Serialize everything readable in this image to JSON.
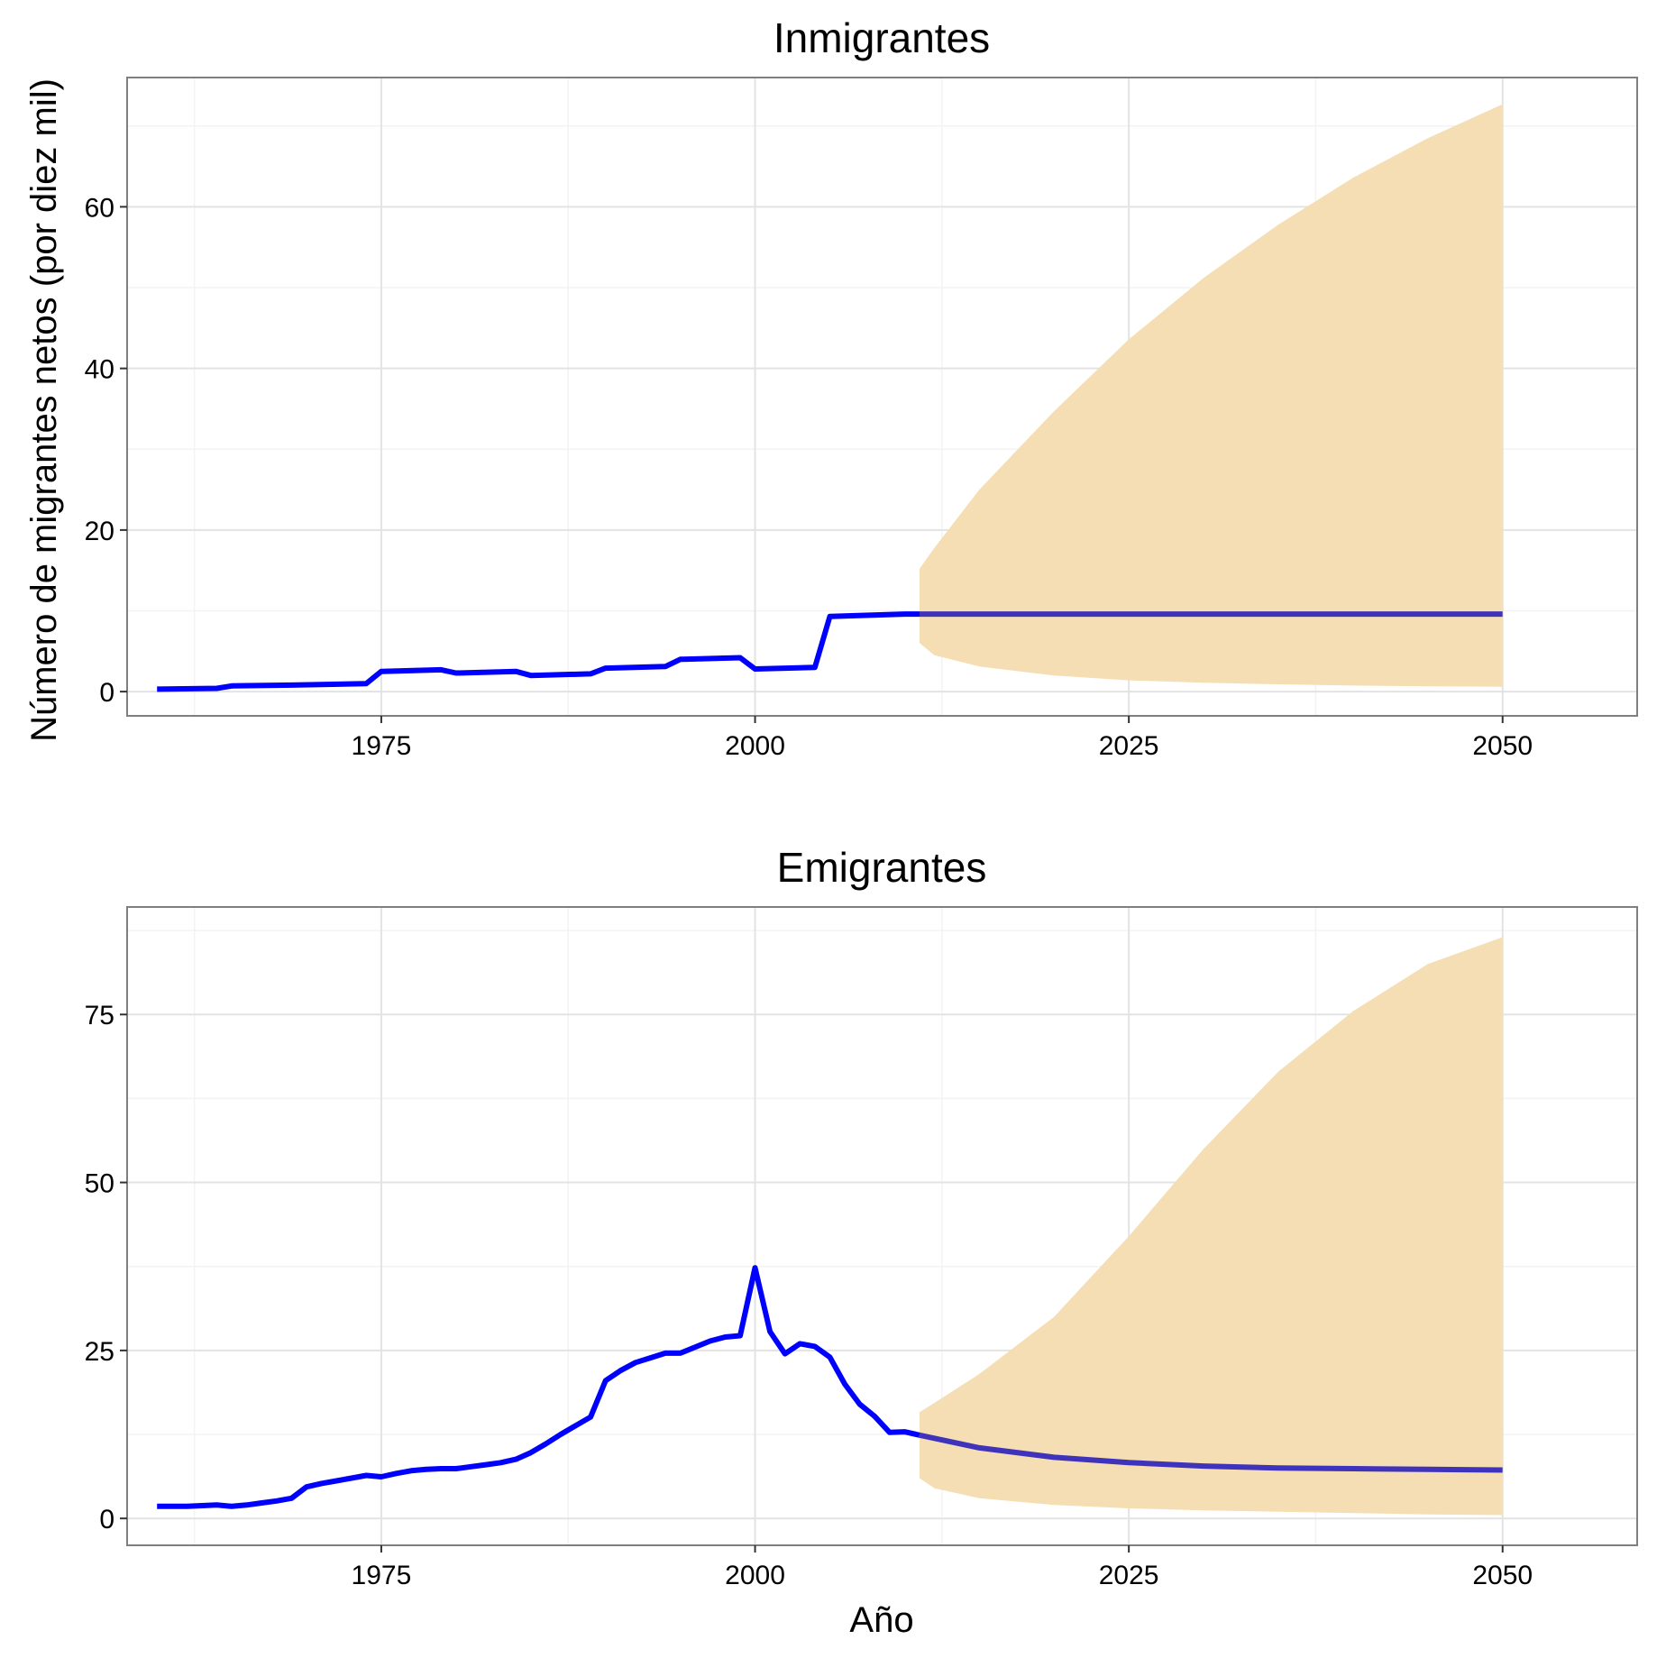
{
  "colors": {
    "observed_line": "#0000FF",
    "projection_line": "#4033BB",
    "projection_band": "#F5DEB3",
    "background": "#FFFFFF"
  },
  "chart_data": [
    {
      "type": "line",
      "title": "Inmigrantes",
      "xlabel": "",
      "ylabel": "Número de migrantes netos (por diez mil)",
      "xlim": [
        1958,
        2059
      ],
      "ylim": [
        -3,
        76
      ],
      "x_ticks": [
        1975,
        2000,
        2025,
        2050
      ],
      "y_ticks": [
        0,
        20,
        40,
        60
      ],
      "grid": true,
      "series": [
        {
          "role": "observed",
          "x": [
            1960,
            1964,
            1965,
            1969,
            1974,
            1975,
            1979,
            1980,
            1984,
            1985,
            1989,
            1990,
            1994,
            1995,
            1999,
            2000,
            2004,
            2005,
            2010,
            2011
          ],
          "y": [
            0.3,
            0.4,
            0.7,
            0.8,
            1.0,
            2.5,
            2.7,
            2.3,
            2.5,
            2.0,
            2.2,
            2.9,
            3.1,
            4.0,
            4.2,
            2.8,
            3.0,
            9.3,
            9.6,
            9.6
          ]
        },
        {
          "role": "projection",
          "x": [
            2011,
            2050
          ],
          "y": [
            9.6,
            9.6
          ]
        },
        {
          "role": "interval",
          "x": [
            2011,
            2012,
            2015,
            2020,
            2025,
            2030,
            2035,
            2040,
            2045,
            2050
          ],
          "lower": [
            6.0,
            4.5,
            3.1,
            2.0,
            1.4,
            1.1,
            0.9,
            0.75,
            0.65,
            0.6
          ],
          "upper": [
            15.2,
            17.8,
            25.0,
            34.7,
            43.6,
            51.2,
            57.8,
            63.6,
            68.5,
            72.7
          ]
        }
      ]
    },
    {
      "type": "line",
      "title": "Emigrantes",
      "xlabel": "Año",
      "ylabel": "",
      "xlim": [
        1958,
        2059
      ],
      "ylim": [
        -4,
        91
      ],
      "x_ticks": [
        1975,
        2000,
        2025,
        2050
      ],
      "y_ticks": [
        0,
        25,
        50,
        75
      ],
      "grid": true,
      "series": [
        {
          "role": "observed",
          "x": [
            1960,
            1961,
            1962,
            1963,
            1964,
            1965,
            1966,
            1967,
            1968,
            1969,
            1970,
            1971,
            1972,
            1973,
            1974,
            1975,
            1976,
            1977,
            1978,
            1979,
            1980,
            1981,
            1982,
            1983,
            1984,
            1985,
            1986,
            1987,
            1988,
            1989,
            1990,
            1991,
            1992,
            1993,
            1994,
            1995,
            1996,
            1997,
            1998,
            1999,
            2000,
            2001,
            2002,
            2003,
            2004,
            2005,
            2006,
            2007,
            2008,
            2009,
            2010,
            2011
          ],
          "y": [
            1.8,
            1.8,
            1.8,
            1.9,
            2.0,
            1.8,
            2.0,
            2.3,
            2.6,
            3.0,
            4.7,
            5.2,
            5.6,
            6.0,
            6.4,
            6.2,
            6.7,
            7.1,
            7.3,
            7.4,
            7.4,
            7.7,
            8.0,
            8.3,
            8.8,
            9.8,
            11.1,
            12.5,
            13.8,
            15.1,
            20.5,
            22.0,
            23.2,
            23.9,
            24.6,
            24.6,
            25.5,
            26.4,
            27.0,
            27.2,
            37.3,
            27.8,
            24.5,
            26.0,
            25.6,
            24.0,
            20.0,
            17.0,
            15.2,
            12.8,
            12.9,
            12.4
          ]
        },
        {
          "role": "projection",
          "x": [
            2011,
            2015,
            2020,
            2025,
            2030,
            2035,
            2040,
            2045,
            2050
          ],
          "y": [
            12.4,
            10.5,
            9.1,
            8.3,
            7.8,
            7.5,
            7.4,
            7.3,
            7.2
          ]
        },
        {
          "role": "interval",
          "x": [
            2011,
            2012,
            2015,
            2020,
            2025,
            2030,
            2035,
            2040,
            2045,
            2050
          ],
          "lower": [
            6.0,
            4.5,
            3.0,
            2.0,
            1.5,
            1.2,
            1.0,
            0.8,
            0.6,
            0.5
          ],
          "upper": [
            15.8,
            17.2,
            21.5,
            30.0,
            42.0,
            55.0,
            66.5,
            75.5,
            82.5,
            86.5
          ]
        }
      ]
    }
  ]
}
